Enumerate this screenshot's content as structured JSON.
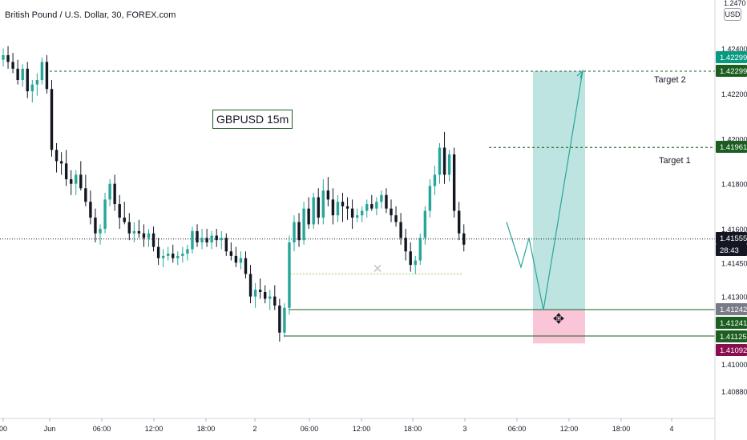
{
  "header": {
    "title": "British Pound / U.S. Dollar, 30, FOREX.com",
    "currency": "USD",
    "top_price_partial": "1.2470"
  },
  "annotations": {
    "note": "GBPUSD 15m",
    "target1": "Target 1",
    "target2": "Target 2"
  },
  "chart_data": {
    "type": "candlestick",
    "symbol": "GBPUSD",
    "y_axis": {
      "ticks": [
        "1.42400",
        "1.42200",
        "1.42000",
        "1.41800",
        "1.41600",
        "1.41450",
        "1.41300",
        "1.41000",
        "1.40880"
      ],
      "tick_values": [
        1.424,
        1.422,
        1.42,
        1.418,
        1.416,
        1.4145,
        1.413,
        1.41,
        1.4088
      ]
    },
    "x_axis": {
      "ticks": [
        "00",
        "Jun",
        "06:00",
        "12:00",
        "18:00",
        "2",
        "06:00",
        "12:00",
        "18:00",
        "3",
        "06:00",
        "12:00",
        "18:00",
        "4"
      ]
    },
    "price_labels": [
      {
        "text": "1.42299",
        "value": 1.42299,
        "color": "#089981",
        "text_color": "#ffffff"
      },
      {
        "text": "1.42299",
        "value": 1.42299,
        "color": "#1b5e20",
        "text_color": "#ffffff"
      },
      {
        "text": "1.41961",
        "value": 1.41961,
        "color": "#1b5e20",
        "text_color": "#ffffff"
      },
      {
        "text": "1.41555",
        "value": 1.41555,
        "color": "#131722",
        "text_color": "#ffffff"
      },
      {
        "text": "28:43",
        "value": 1.41508,
        "color": "#131722",
        "text_color": "#ffffff"
      },
      {
        "text": "1.41242",
        "value": 1.41242,
        "color": "#787b86",
        "text_color": "#ffffff"
      },
      {
        "text": "1.41241",
        "value": 1.41241,
        "color": "#1b5e20",
        "text_color": "#ffffff"
      },
      {
        "text": "1.41125",
        "value": 1.41125,
        "color": "#1b5e20",
        "text_color": "#ffffff"
      },
      {
        "text": "1.41092",
        "value": 1.41092,
        "color": "#880e4f",
        "text_color": "#ffffff"
      }
    ],
    "levels": {
      "target2": 1.42299,
      "target1": 1.41961,
      "last": 1.41555,
      "entry": 1.41242,
      "zone_low": 1.41125,
      "stop": 1.41092
    },
    "colors": {
      "up": "#26a69a",
      "down": "#131722",
      "profit_zone": "#b2dfdb",
      "loss_zone": "#f8bbd0",
      "level_line": "#1b5e20"
    },
    "candles": [
      [
        1.4235,
        1.424,
        1.4232,
        1.4237
      ],
      [
        1.4237,
        1.4241,
        1.4231,
        1.4234
      ],
      [
        1.4234,
        1.4238,
        1.4229,
        1.4231
      ],
      [
        1.4231,
        1.4235,
        1.4224,
        1.4226
      ],
      [
        1.4226,
        1.4233,
        1.4223,
        1.4231
      ],
      [
        1.4231,
        1.4234,
        1.4218,
        1.4221
      ],
      [
        1.4221,
        1.4226,
        1.4216,
        1.4224
      ],
      [
        1.4224,
        1.4229,
        1.4219,
        1.4226
      ],
      [
        1.4226,
        1.4236,
        1.4224,
        1.4234
      ],
      [
        1.4234,
        1.4237,
        1.422,
        1.4222
      ],
      [
        1.4222,
        1.4226,
        1.4192,
        1.4195
      ],
      [
        1.4195,
        1.4198,
        1.4185,
        1.419
      ],
      [
        1.419,
        1.4194,
        1.4184,
        1.4189
      ],
      [
        1.4189,
        1.4195,
        1.4179,
        1.4182
      ],
      [
        1.4182,
        1.4186,
        1.4175,
        1.418
      ],
      [
        1.418,
        1.4186,
        1.4175,
        1.4184
      ],
      [
        1.4184,
        1.419,
        1.4177,
        1.4178
      ],
      [
        1.4178,
        1.4184,
        1.417,
        1.4172
      ],
      [
        1.4172,
        1.4177,
        1.4162,
        1.4165
      ],
      [
        1.4165,
        1.4169,
        1.4154,
        1.4158
      ],
      [
        1.4158,
        1.4162,
        1.4153,
        1.416
      ],
      [
        1.416,
        1.4176,
        1.4158,
        1.4173
      ],
      [
        1.4173,
        1.4182,
        1.417,
        1.418
      ],
      [
        1.418,
        1.4184,
        1.4168,
        1.4171
      ],
      [
        1.4171,
        1.4175,
        1.416,
        1.4165
      ],
      [
        1.4165,
        1.4172,
        1.4162,
        1.4163
      ],
      [
        1.4163,
        1.4167,
        1.4155,
        1.4158
      ],
      [
        1.4158,
        1.4163,
        1.4154,
        1.4159
      ],
      [
        1.4159,
        1.4164,
        1.4156,
        1.4158
      ],
      [
        1.4158,
        1.4162,
        1.4152,
        1.4156
      ],
      [
        1.4156,
        1.416,
        1.4152,
        1.4158
      ],
      [
        1.4158,
        1.4161,
        1.415,
        1.4152
      ],
      [
        1.4152,
        1.4156,
        1.4144,
        1.4147
      ],
      [
        1.4147,
        1.4151,
        1.4143,
        1.4148
      ],
      [
        1.4148,
        1.4152,
        1.4146,
        1.4149
      ],
      [
        1.4149,
        1.4153,
        1.4145,
        1.4147
      ],
      [
        1.4147,
        1.415,
        1.4144,
        1.4148
      ],
      [
        1.4148,
        1.4152,
        1.4145,
        1.4149
      ],
      [
        1.4149,
        1.4153,
        1.4146,
        1.4151
      ],
      [
        1.4151,
        1.4161,
        1.4149,
        1.4159
      ],
      [
        1.4159,
        1.4162,
        1.4152,
        1.4154
      ],
      [
        1.4154,
        1.416,
        1.4151,
        1.4156
      ],
      [
        1.4156,
        1.416,
        1.4152,
        1.4154
      ],
      [
        1.4154,
        1.4159,
        1.4151,
        1.4157
      ],
      [
        1.4157,
        1.416,
        1.4152,
        1.4155
      ],
      [
        1.4155,
        1.4159,
        1.4151,
        1.4156
      ],
      [
        1.4156,
        1.4158,
        1.4148,
        1.415
      ],
      [
        1.415,
        1.4154,
        1.4146,
        1.4148
      ],
      [
        1.4148,
        1.4152,
        1.4143,
        1.4145
      ],
      [
        1.4145,
        1.415,
        1.4142,
        1.4147
      ],
      [
        1.4147,
        1.415,
        1.4138,
        1.414
      ],
      [
        1.414,
        1.4144,
        1.4127,
        1.413
      ],
      [
        1.413,
        1.4136,
        1.4125,
        1.4133
      ],
      [
        1.4133,
        1.4138,
        1.4129,
        1.4132
      ],
      [
        1.4132,
        1.4135,
        1.4127,
        1.4129
      ],
      [
        1.4129,
        1.4133,
        1.4124,
        1.413
      ],
      [
        1.413,
        1.4135,
        1.4124,
        1.4126
      ],
      [
        1.4126,
        1.4129,
        1.411,
        1.4114
      ],
      [
        1.4114,
        1.4127,
        1.4112,
        1.4125
      ],
      [
        1.4125,
        1.4157,
        1.4122,
        1.4154
      ],
      [
        1.4154,
        1.4166,
        1.415,
        1.4163
      ],
      [
        1.4163,
        1.4167,
        1.4152,
        1.4155
      ],
      [
        1.4155,
        1.4172,
        1.4153,
        1.4169
      ],
      [
        1.4169,
        1.4174,
        1.416,
        1.4162
      ],
      [
        1.4162,
        1.4176,
        1.416,
        1.4174
      ],
      [
        1.4174,
        1.4178,
        1.4162,
        1.4165
      ],
      [
        1.4165,
        1.4182,
        1.4162,
        1.4177
      ],
      [
        1.4177,
        1.4183,
        1.417,
        1.4173
      ],
      [
        1.4173,
        1.4178,
        1.4162,
        1.4166
      ],
      [
        1.4166,
        1.4175,
        1.4163,
        1.4172
      ],
      [
        1.4172,
        1.4176,
        1.4163,
        1.417
      ],
      [
        1.417,
        1.4174,
        1.4164,
        1.4169
      ],
      [
        1.4169,
        1.4173,
        1.416,
        1.4165
      ],
      [
        1.4165,
        1.4169,
        1.4163,
        1.4166
      ],
      [
        1.4166,
        1.417,
        1.4163,
        1.4168
      ],
      [
        1.4168,
        1.4173,
        1.4165,
        1.4171
      ],
      [
        1.4171,
        1.4175,
        1.4168,
        1.4169
      ],
      [
        1.4169,
        1.4174,
        1.4166,
        1.4172
      ],
      [
        1.4172,
        1.4177,
        1.4169,
        1.4175
      ],
      [
        1.4175,
        1.4178,
        1.4167,
        1.4169
      ],
      [
        1.4169,
        1.4173,
        1.4163,
        1.4166
      ],
      [
        1.4166,
        1.417,
        1.4161,
        1.4163
      ],
      [
        1.4163,
        1.4167,
        1.4153,
        1.4156
      ],
      [
        1.4156,
        1.416,
        1.4146,
        1.415
      ],
      [
        1.415,
        1.4154,
        1.4141,
        1.4144
      ],
      [
        1.4144,
        1.4148,
        1.414,
        1.4146
      ],
      [
        1.4146,
        1.4158,
        1.4144,
        1.4156
      ],
      [
        1.4156,
        1.417,
        1.4153,
        1.4168
      ],
      [
        1.4168,
        1.4182,
        1.4165,
        1.4179
      ],
      [
        1.4179,
        1.4188,
        1.4175,
        1.4184
      ],
      [
        1.4184,
        1.4198,
        1.418,
        1.4196
      ],
      [
        1.4196,
        1.4203,
        1.418,
        1.4184
      ],
      [
        1.4184,
        1.4195,
        1.4181,
        1.4193
      ],
      [
        1.4193,
        1.4196,
        1.4165,
        1.4168
      ],
      [
        1.4168,
        1.4172,
        1.4155,
        1.4158
      ],
      [
        1.4158,
        1.4162,
        1.415,
        1.4153
      ]
    ],
    "projection_path": [
      [
        1.4163,
        0
      ],
      [
        1.4143,
        1
      ],
      [
        1.4156,
        2
      ],
      [
        1.4124,
        3
      ],
      [
        1.423,
        4
      ]
    ]
  }
}
